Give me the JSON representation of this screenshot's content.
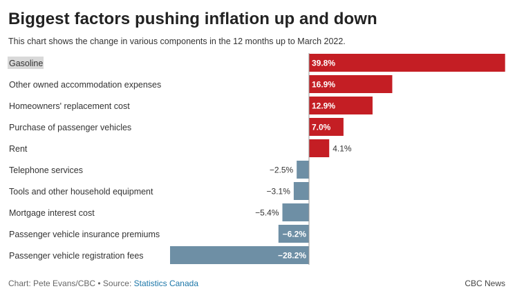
{
  "chart_data": {
    "type": "bar",
    "orientation": "horizontal",
    "title": "Biggest factors pushing inflation up and down",
    "subtitle": "This chart shows the change in various components in the 12 months up to March 2022.",
    "categories": [
      "Gasoline",
      "Other owned accommodation expenses",
      "Homeowners' replacement cost",
      "Purchase of passenger vehicles",
      "Rent",
      "Telephone services",
      "Tools and other household equipment",
      "Mortgage interest cost",
      "Passenger vehicle insurance premiums",
      "Passenger vehicle registration fees"
    ],
    "values": [
      39.8,
      16.9,
      12.9,
      7.0,
      4.1,
      -2.5,
      -3.1,
      -5.4,
      -6.2,
      -28.2
    ],
    "value_labels": [
      "39.8%",
      "16.9%",
      "12.9%",
      "7.0%",
      "4.1%",
      "−2.5%",
      "−3.1%",
      "−5.4%",
      "−6.2%",
      "−28.2%"
    ],
    "xlim": [
      -28.2,
      39.8
    ],
    "highlighted_category": "Gasoline",
    "colors": {
      "positive": "#c41e24",
      "negative": "#6e8fa5",
      "axis": "#999999",
      "highlight": "#d9d9d9"
    }
  },
  "footer": {
    "credit": "Chart: Pete Evans/CBC • Source: ",
    "source_link": "Statistics Canada",
    "brand": "CBC News"
  }
}
